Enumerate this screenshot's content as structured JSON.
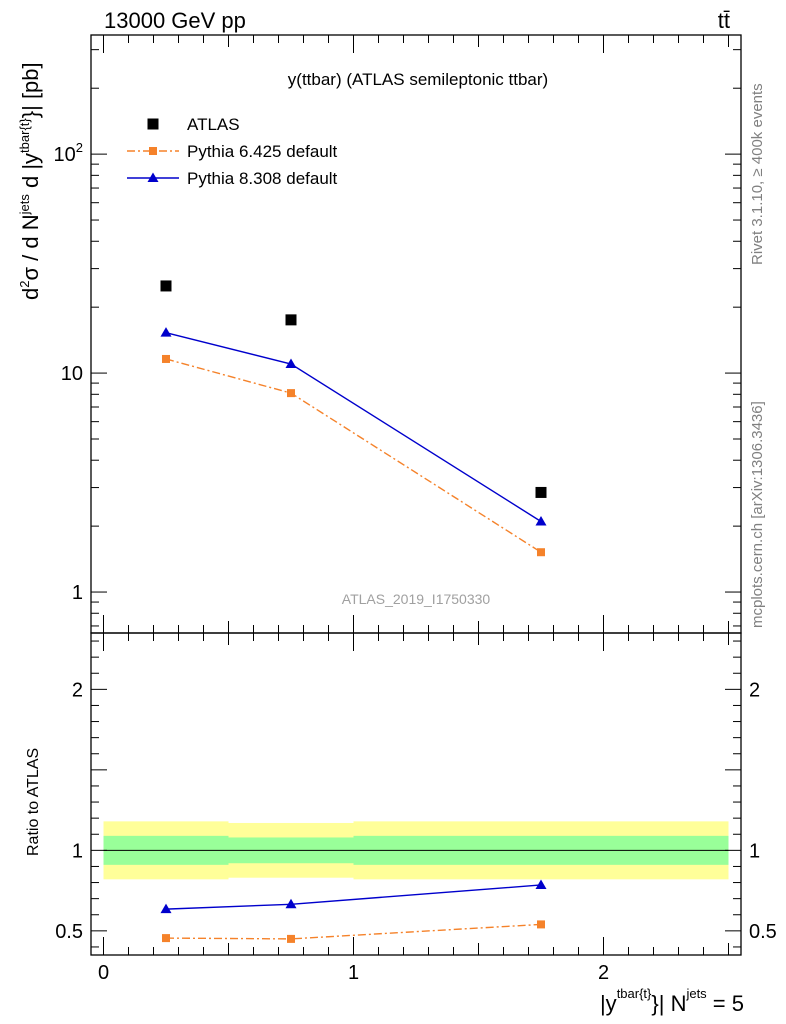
{
  "header": {
    "left": "13000 GeV pp",
    "right": "tt̄"
  },
  "side_labels": {
    "rivet": "Rivet 3.1.10, ≥ 400k events",
    "mcplots": "mcplots.cern.ch [arXiv:1306.3436]"
  },
  "colors": {
    "data": "#000000",
    "pythia6": "#f5822a",
    "pythia8": "#0000cc",
    "band_inner": "#99ff99",
    "band_outer": "#ffff99"
  },
  "chart_data": [
    {
      "type": "scatter",
      "panel": "main",
      "title": "y(ttbar) (ATLAS semileptonic ttbar)",
      "watermark": "ATLAS_2019_I1750330",
      "ylabel": "d²σ / d Nʲᵉᵗˢ d |yᵗᵇᵃʳ⁽ᵗ⁾| [pb]",
      "yscale": "log",
      "xlim": [
        -0.05,
        2.55
      ],
      "ylim": [
        0.65,
        350
      ],
      "yticks": [
        {
          "value": 1,
          "label": "1"
        },
        {
          "value": 10,
          "label": "10"
        },
        {
          "value": 100,
          "label": "10²"
        }
      ],
      "legend_position": "top-left",
      "series": [
        {
          "name": "ATLAS",
          "key": "data",
          "style": "square-markers",
          "x": [
            0.25,
            0.75,
            1.75
          ],
          "y": [
            25.0,
            17.5,
            2.85
          ]
        },
        {
          "name": "Pythia 6.425 default",
          "key": "pythia6",
          "style": "dash-dot-squares",
          "x": [
            0.25,
            0.75,
            1.75
          ],
          "y": [
            11.6,
            8.1,
            1.52
          ]
        },
        {
          "name": "Pythia 8.308 default",
          "key": "pythia8",
          "style": "solid-triangles",
          "x": [
            0.25,
            0.75,
            1.75
          ],
          "y": [
            15.3,
            11.0,
            2.1
          ]
        }
      ]
    },
    {
      "type": "line",
      "panel": "ratio",
      "ylabel": "Ratio to ATLAS",
      "xlabel": "|yᵗᵇᵃʳ⁽ᵗ⁾| Nʲᵉᵗˢ = 5",
      "xlim": [
        -0.05,
        2.55
      ],
      "ylim": [
        0.35,
        2.35
      ],
      "xticks": [
        {
          "value": 0,
          "label": "0"
        },
        {
          "value": 1,
          "label": "1"
        },
        {
          "value": 2,
          "label": "2"
        }
      ],
      "yticks": [
        {
          "value": 0.5,
          "label": "0.5"
        },
        {
          "value": 1,
          "label": "1"
        },
        {
          "value": 2,
          "label": "2"
        }
      ],
      "bands": [
        {
          "x0": 0.0,
          "x1": 0.5,
          "outer": [
            0.82,
            1.18
          ],
          "inner": [
            0.91,
            1.09
          ]
        },
        {
          "x0": 0.5,
          "x1": 1.0,
          "outer": [
            0.83,
            1.17
          ],
          "inner": [
            0.92,
            1.08
          ]
        },
        {
          "x0": 1.0,
          "x1": 2.5,
          "outer": [
            0.82,
            1.18
          ],
          "inner": [
            0.91,
            1.09
          ]
        }
      ],
      "series": [
        {
          "name": "Pythia 6.425 default",
          "key": "pythia6",
          "x": [
            0.25,
            0.75,
            1.75
          ],
          "y": [
            0.455,
            0.45,
            0.54
          ]
        },
        {
          "name": "Pythia 8.308 default",
          "key": "pythia8",
          "x": [
            0.25,
            0.75,
            1.75
          ],
          "y": [
            0.635,
            0.665,
            0.785
          ]
        }
      ]
    }
  ]
}
